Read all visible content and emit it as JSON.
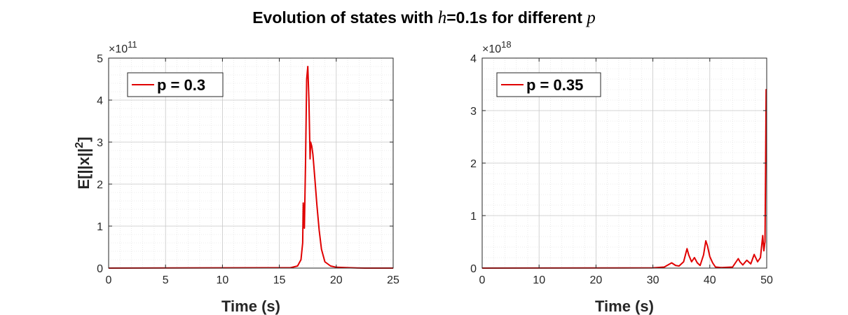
{
  "figure": {
    "title_prefix": "Evolution of states with ",
    "title_h": "h",
    "title_mid": "=0.1s for different ",
    "title_p": "p"
  },
  "colors": {
    "series": "#e00000",
    "axis": "#262626",
    "grid": "#dcdcdc"
  },
  "chart_data": [
    {
      "type": "line",
      "title": "",
      "xlabel": "Time (s)",
      "ylabel": "E[||x||²]",
      "exponent_label": "×10",
      "exponent": "11",
      "xlim": [
        0,
        25
      ],
      "ylim": [
        0,
        5
      ],
      "xticks": [
        0,
        5,
        10,
        15,
        20,
        25
      ],
      "yticks": [
        0,
        1,
        2,
        3,
        4,
        5
      ],
      "grid": true,
      "legend_position": "top-left",
      "series": [
        {
          "name": "p = 0.3",
          "x": [
            0,
            16.0,
            16.6,
            16.9,
            17.05,
            17.1,
            17.2,
            17.3,
            17.4,
            17.5,
            17.6,
            17.7,
            17.75,
            17.85,
            17.95,
            18.1,
            18.3,
            18.5,
            18.7,
            19.0,
            19.5,
            20.0,
            21.0,
            22.5,
            25.0
          ],
          "y": [
            0,
            0.01,
            0.05,
            0.2,
            0.6,
            1.55,
            0.95,
            2.5,
            4.5,
            4.8,
            4.0,
            2.6,
            3.0,
            2.9,
            2.7,
            2.2,
            1.5,
            0.9,
            0.45,
            0.15,
            0.05,
            0.02,
            0.01,
            0.0,
            0.0
          ]
        }
      ]
    },
    {
      "type": "line",
      "title": "",
      "xlabel": "Time (s)",
      "ylabel": "",
      "exponent_label": "×10",
      "exponent": "18",
      "xlim": [
        0,
        50
      ],
      "ylim": [
        0,
        4
      ],
      "xticks": [
        0,
        10,
        20,
        30,
        40,
        50
      ],
      "yticks": [
        0,
        1,
        2,
        3,
        4
      ],
      "grid": true,
      "legend_position": "top-left",
      "series": [
        {
          "name": "p = 0.35",
          "x": [
            0,
            30,
            32,
            33.3,
            34,
            34.6,
            35.4,
            36.0,
            36.3,
            36.8,
            37.3,
            37.8,
            38.3,
            38.9,
            39.3,
            39.6,
            40.0,
            40.5,
            41.0,
            42.0,
            44.0,
            45.0,
            45.3,
            45.8,
            46.5,
            47.2,
            47.8,
            48.4,
            48.9,
            49.3,
            49.5,
            49.7,
            49.8,
            49.9,
            50.0
          ],
          "y": [
            0,
            0.005,
            0.02,
            0.1,
            0.05,
            0.04,
            0.12,
            0.37,
            0.25,
            0.12,
            0.2,
            0.1,
            0.05,
            0.25,
            0.52,
            0.42,
            0.22,
            0.1,
            0.02,
            0.01,
            0.02,
            0.18,
            0.12,
            0.06,
            0.15,
            0.08,
            0.26,
            0.12,
            0.2,
            0.62,
            0.33,
            0.5,
            1.8,
            3.4,
            3.4
          ]
        }
      ]
    }
  ]
}
